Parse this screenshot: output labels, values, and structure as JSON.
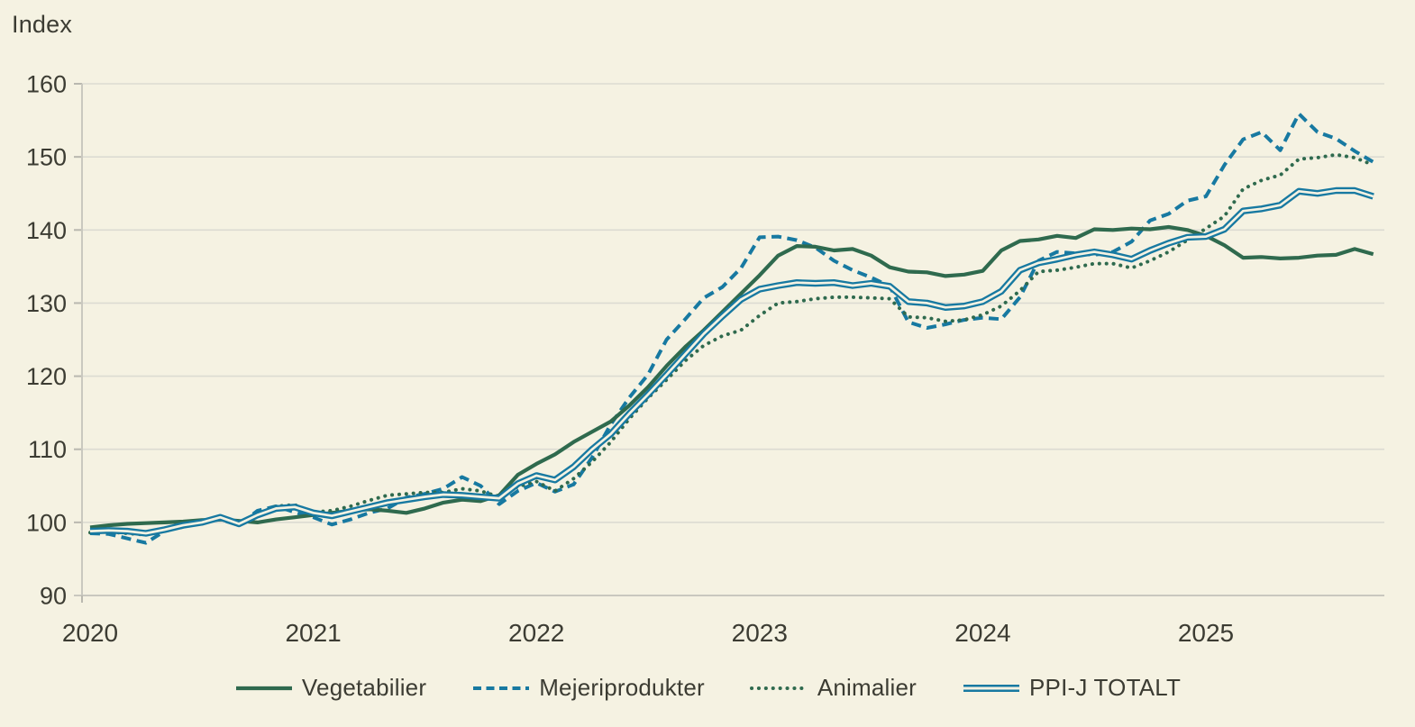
{
  "page": {
    "background": "#f5f2e2",
    "text_color": "#3c3c33"
  },
  "chart_data": {
    "type": "line",
    "y_axis_title": "Index",
    "y_ticks": [
      90,
      100,
      110,
      120,
      130,
      140,
      150,
      160
    ],
    "ylim": [
      90,
      160
    ],
    "x_tick_labels": [
      "2020",
      "2021",
      "2022",
      "2023",
      "2024",
      "2025"
    ],
    "x_start_month": "2020-01",
    "x_end_month": "2025-10",
    "points_per_year": 12,
    "grid": "horizontal-only",
    "legend_position": "bottom-center",
    "colors": {
      "green": "#2f6a4e",
      "blue": "#1779a1",
      "grid": "#dcdbd2",
      "axis": "#c9c8bf",
      "tick": "#b9b8af"
    },
    "series": [
      {
        "name": "Vegetabilier",
        "style": "solid",
        "color_key": "green",
        "values": [
          99.3,
          99.6,
          99.8,
          99.9,
          100.0,
          100.1,
          100.3,
          100.4,
          100.2,
          100.0,
          100.4,
          100.7,
          101.0,
          101.3,
          101.6,
          101.8,
          101.6,
          101.3,
          101.9,
          102.7,
          103.1,
          102.9,
          103.7,
          106.5,
          108.0,
          109.3,
          111.0,
          112.4,
          113.8,
          116.0,
          118.5,
          121.4,
          124.0,
          126.3,
          128.8,
          131.3,
          133.8,
          136.5,
          137.8,
          137.7,
          137.2,
          137.4,
          136.5,
          134.9,
          134.3,
          134.2,
          133.7,
          133.9,
          134.4,
          137.2,
          138.5,
          138.7,
          139.2,
          138.9,
          140.1,
          140.0,
          140.2,
          140.1,
          140.4,
          140.0,
          139.2,
          137.9,
          136.2,
          136.3,
          136.1,
          136.2,
          136.5,
          136.6,
          137.4,
          136.7
        ]
      },
      {
        "name": "Mejeriprodukter",
        "style": "dashed",
        "color_key": "blue",
        "values": [
          98.5,
          98.4,
          97.8,
          97.2,
          98.8,
          99.6,
          100.0,
          100.4,
          99.6,
          101.6,
          102.2,
          101.4,
          100.7,
          99.7,
          100.4,
          101.3,
          101.9,
          103.4,
          103.9,
          104.6,
          106.2,
          105.0,
          102.5,
          104.3,
          105.4,
          104.2,
          105.2,
          108.9,
          113.4,
          117.1,
          120.2,
          125.0,
          127.8,
          130.7,
          132.2,
          134.8,
          139.0,
          139.1,
          138.6,
          137.6,
          135.8,
          134.5,
          133.5,
          132.3,
          127.4,
          126.6,
          127.1,
          127.7,
          128.0,
          127.8,
          130.8,
          135.8,
          137.0,
          136.8,
          136.6,
          137.0,
          138.4,
          141.3,
          142.2,
          144.0,
          144.6,
          148.9,
          152.4,
          153.4,
          150.9,
          155.9,
          153.4,
          152.5,
          150.8,
          149.3
        ]
      },
      {
        "name": "Animalier",
        "style": "dotted",
        "color_key": "green",
        "values": [
          98.6,
          98.7,
          98.5,
          98.3,
          98.8,
          99.4,
          100.0,
          100.9,
          99.9,
          101.2,
          102.2,
          102.4,
          101.4,
          101.6,
          102.2,
          103.0,
          103.7,
          103.9,
          104.1,
          104.1,
          104.6,
          104.3,
          103.5,
          104.9,
          105.6,
          104.3,
          106.0,
          108.3,
          111.0,
          114.2,
          117.0,
          119.5,
          122.1,
          124.2,
          125.5,
          126.3,
          128.3,
          130.0,
          130.2,
          130.6,
          130.8,
          130.8,
          130.7,
          130.6,
          128.1,
          128.0,
          127.5,
          127.7,
          128.4,
          129.6,
          131.7,
          134.3,
          134.5,
          134.9,
          135.4,
          135.4,
          134.8,
          135.8,
          137.0,
          138.6,
          140.2,
          141.9,
          145.6,
          146.8,
          147.5,
          149.7,
          149.9,
          150.3,
          149.9,
          148.9
        ]
      },
      {
        "name": "PPI-J TOTALT",
        "style": "double",
        "color_key": "blue",
        "values": [
          98.8,
          98.9,
          98.8,
          98.5,
          99.0,
          99.6,
          100.0,
          100.7,
          99.8,
          101.0,
          101.9,
          102.1,
          101.3,
          100.9,
          101.5,
          102.1,
          102.7,
          103.1,
          103.5,
          103.8,
          103.7,
          103.5,
          103.3,
          105.3,
          106.4,
          105.8,
          107.6,
          110.0,
          112.1,
          114.9,
          117.5,
          120.2,
          123.0,
          125.8,
          128.2,
          130.5,
          131.9,
          132.4,
          132.8,
          132.7,
          132.8,
          132.4,
          132.7,
          132.3,
          130.2,
          130.0,
          129.4,
          129.6,
          130.2,
          131.6,
          134.5,
          135.5,
          136.0,
          136.6,
          137.0,
          136.6,
          136.0,
          137.2,
          138.2,
          139.0,
          139.1,
          140.1,
          142.6,
          142.9,
          143.4,
          145.3,
          145.0,
          145.4,
          145.4,
          144.6
        ]
      }
    ]
  }
}
